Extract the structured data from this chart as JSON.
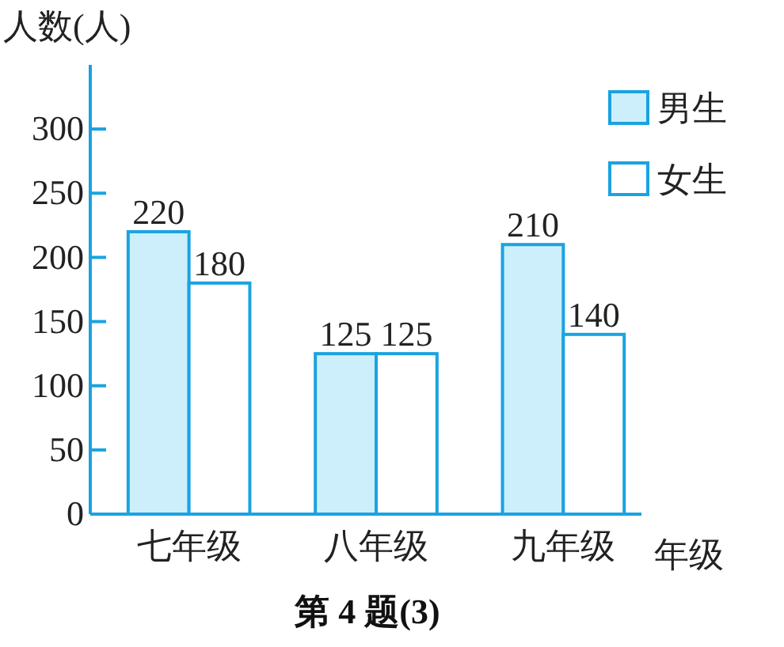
{
  "chart_data": {
    "type": "bar",
    "title": "第 4 题(3)",
    "xlabel": "年级",
    "ylabel": "人数(人)",
    "categories": [
      "七年级",
      "八年级",
      "九年级"
    ],
    "series": [
      {
        "name": "男生",
        "color": "#cdeffb",
        "values": [
          220,
          125,
          210
        ]
      },
      {
        "name": "女生",
        "color": "#ffffff",
        "values": [
          180,
          125,
          140
        ]
      }
    ],
    "ylim": [
      0,
      350
    ],
    "yticks": [
      0,
      50,
      100,
      150,
      200,
      250,
      300
    ],
    "data_labels": true,
    "legend": "top right"
  }
}
